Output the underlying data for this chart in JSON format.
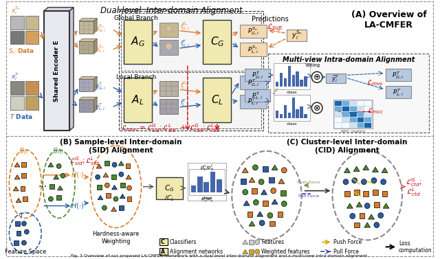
{
  "title": "Fig. 3 Overview of our proposed LA-CMFER framework with a dual-level inter-domain alignment and a multi-view intra-domain alignment.",
  "bg_color": "#ffffff",
  "top_section_title": "Dual-level  Inter-domain Alignment",
  "panel_A_title": "(A) Overview of\nLA-CMFER",
  "panel_B_title": "(B) Sample-level Inter-domain\n(SID) Alignment",
  "panel_C_title": "(C) Cluster-level Inter-domain\n(CID) Alignment",
  "global_branch_label": "Global Branch",
  "local_branch_label": "Local Branch",
  "multiview_label": "Multi-view Intra-domain Alignment",
  "encoder_label": "Shared Encoder E",
  "Sn_label": "S_n Data",
  "T_label": "T Data",
  "feature_space_label": "Feature Space",
  "hardness_label": "Hardness-aware\nWeighting",
  "predictions_label": "Predictions",
  "voting_label": "Voting",
  "orange_color": "#D97B2A",
  "blue_color": "#2B5EA7",
  "red_color": "#CC0000",
  "yellow_bg": "#F0EAB0",
  "gray_bg": "#CCCCCC",
  "dark_gray": "#444444",
  "light_orange_bg": "#F5D9B0",
  "light_blue_bg": "#B8C8E0",
  "green_color": "#4A8A30"
}
